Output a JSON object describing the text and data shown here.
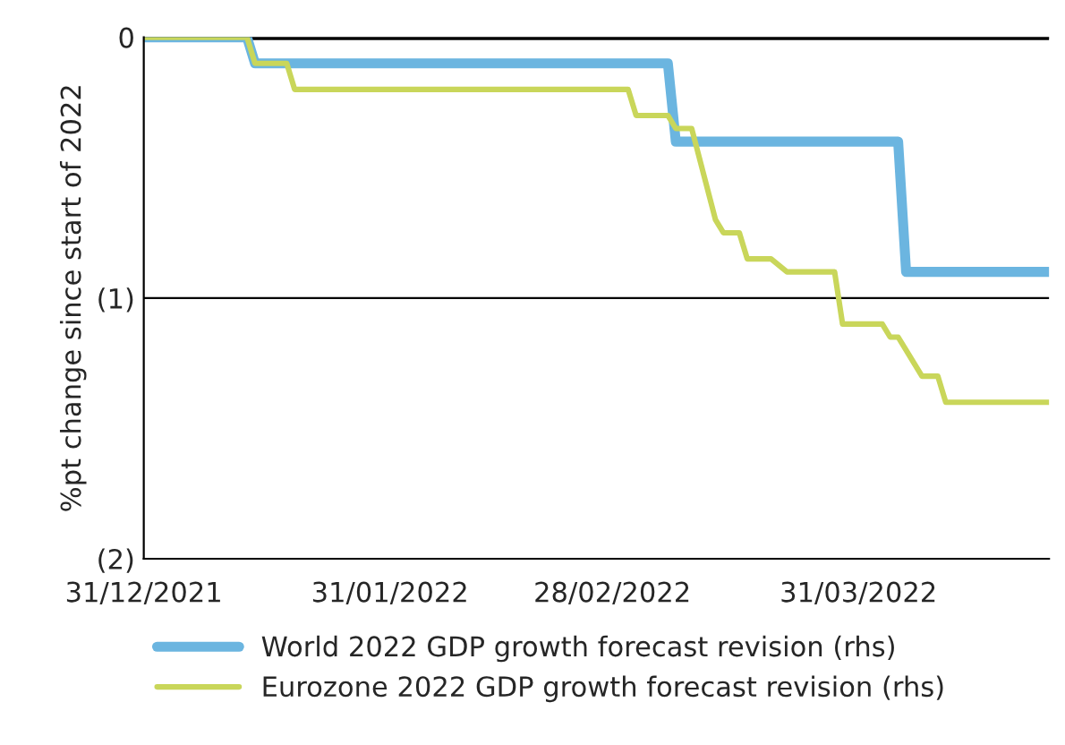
{
  "chart_data": {
    "type": "line",
    "ylabel": "%pt change since start of 2022",
    "series": [
      {
        "name": "World 2022 GDP growth forecast revision (rhs)",
        "color": "#6bb5e0",
        "x": [
          "2021-12-31",
          "2022-01-13",
          "2022-01-14",
          "2022-03-07",
          "2022-03-08",
          "2022-04-05",
          "2022-04-06",
          "2022-04-24"
        ],
        "values": [
          0,
          0,
          -0.1,
          -0.1,
          -0.4,
          -0.4,
          -0.9,
          -0.9
        ]
      },
      {
        "name": "Eurozone 2022 GDP growth forecast revision (rhs)",
        "color": "#c9d65a",
        "x": [
          "2021-12-31",
          "2022-01-13",
          "2022-01-14",
          "2022-01-18",
          "2022-01-19",
          "2022-03-02",
          "2022-03-03",
          "2022-03-07",
          "2022-03-08",
          "2022-03-10",
          "2022-03-13",
          "2022-03-14",
          "2022-03-16",
          "2022-03-17",
          "2022-03-20",
          "2022-03-22",
          "2022-03-28",
          "2022-03-29",
          "2022-04-03",
          "2022-04-04",
          "2022-04-05",
          "2022-04-08",
          "2022-04-10",
          "2022-04-11",
          "2022-04-24"
        ],
        "values": [
          0,
          0,
          -0.1,
          -0.1,
          -0.2,
          -0.2,
          -0.3,
          -0.3,
          -0.35,
          -0.35,
          -0.7,
          -0.75,
          -0.75,
          -0.85,
          -0.85,
          -0.9,
          -0.9,
          -1.1,
          -1.1,
          -1.15,
          -1.15,
          -1.3,
          -1.3,
          -1.4,
          -1.4
        ]
      }
    ],
    "xlim": [
      "2021-12-31",
      "2022-04-24"
    ],
    "xticks": [
      {
        "value": "2021-12-31",
        "label": "31/12/2021"
      },
      {
        "value": "2022-01-31",
        "label": "31/01/2022"
      },
      {
        "value": "2022-02-28",
        "label": "28/02/2022"
      },
      {
        "value": "2022-03-31",
        "label": "31/03/2022"
      }
    ],
    "ylim": [
      -2,
      0
    ],
    "yticks": [
      {
        "value": 0,
        "label": "0"
      },
      {
        "value": -1,
        "label": "(1)"
      },
      {
        "value": -2,
        "label": "(2)"
      }
    ],
    "ref_lines": [
      {
        "axis": "y",
        "value": 0,
        "color": "#000000"
      }
    ],
    "grid": "y",
    "legend": "bottom",
    "marker": "none",
    "line_style": "solid"
  }
}
